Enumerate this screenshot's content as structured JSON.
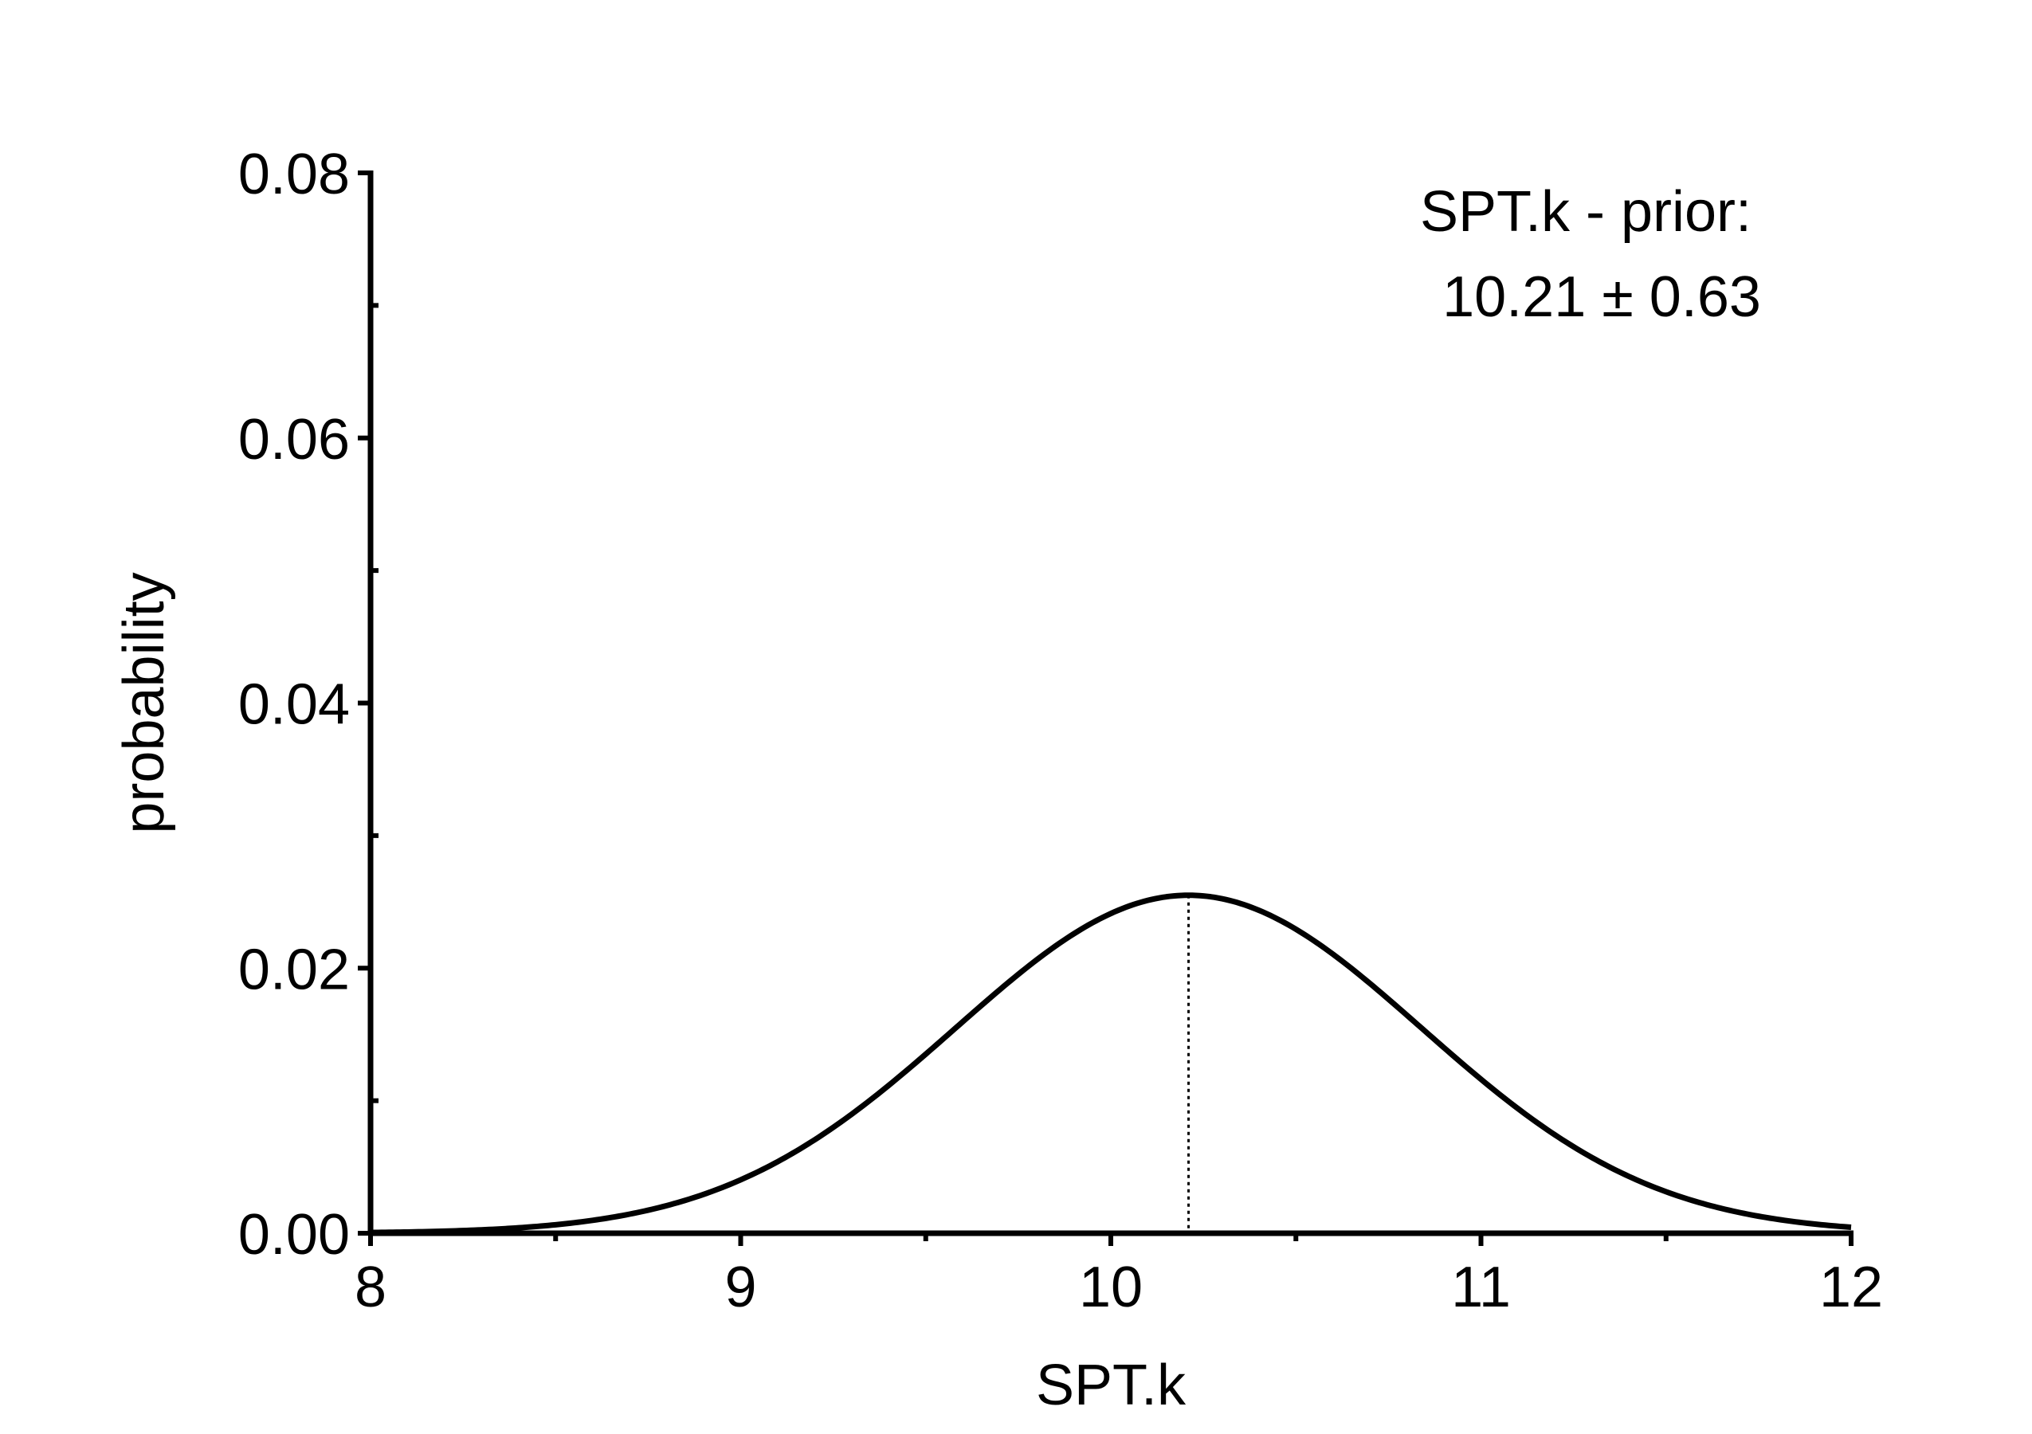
{
  "chart_data": {
    "type": "line",
    "title": "",
    "xlabel": "SPT.k",
    "ylabel": "probability",
    "xlim": [
      8,
      12
    ],
    "ylim": [
      0,
      0.08
    ],
    "x_ticks": [
      8,
      9,
      10,
      11,
      12
    ],
    "x_tick_labels": [
      "8",
      "9",
      "10",
      "11",
      "12"
    ],
    "x_minor_ticks": [
      8.5,
      9.5,
      10.5,
      11.5
    ],
    "y_ticks": [
      0,
      0.02,
      0.04,
      0.06,
      0.08
    ],
    "y_tick_labels": [
      "0.00",
      "0.02",
      "0.04",
      "0.06",
      "0.08"
    ],
    "y_minor_ticks": [
      0.01,
      0.03,
      0.05,
      0.07
    ],
    "grid": false,
    "series": [
      {
        "distribution": "normal",
        "mean": 10.21,
        "sd": 0.63,
        "peak_probability": 0.0255,
        "x": [
          8.0,
          8.25,
          8.5,
          8.75,
          9.0,
          9.25,
          9.5,
          9.75,
          10.0,
          10.21,
          10.25,
          10.5,
          10.75,
          11.0,
          11.25,
          11.5,
          11.75,
          12.0
        ],
        "y": [
          0.0001,
          0.0003,
          0.0009,
          0.0018,
          0.0039,
          0.008,
          0.0134,
          0.0195,
          0.0242,
          0.0255,
          0.0254,
          0.023,
          0.0184,
          0.0125,
          0.0074,
          0.0037,
          0.0015,
          0.0005
        ],
        "color": "#000000"
      }
    ],
    "mean_marker": {
      "x": 10.21,
      "style": "dotted"
    },
    "annotation": {
      "line1": "SPT.k - prior:",
      "line2": "10.21 ± 0.63",
      "placement": "top-right"
    }
  }
}
